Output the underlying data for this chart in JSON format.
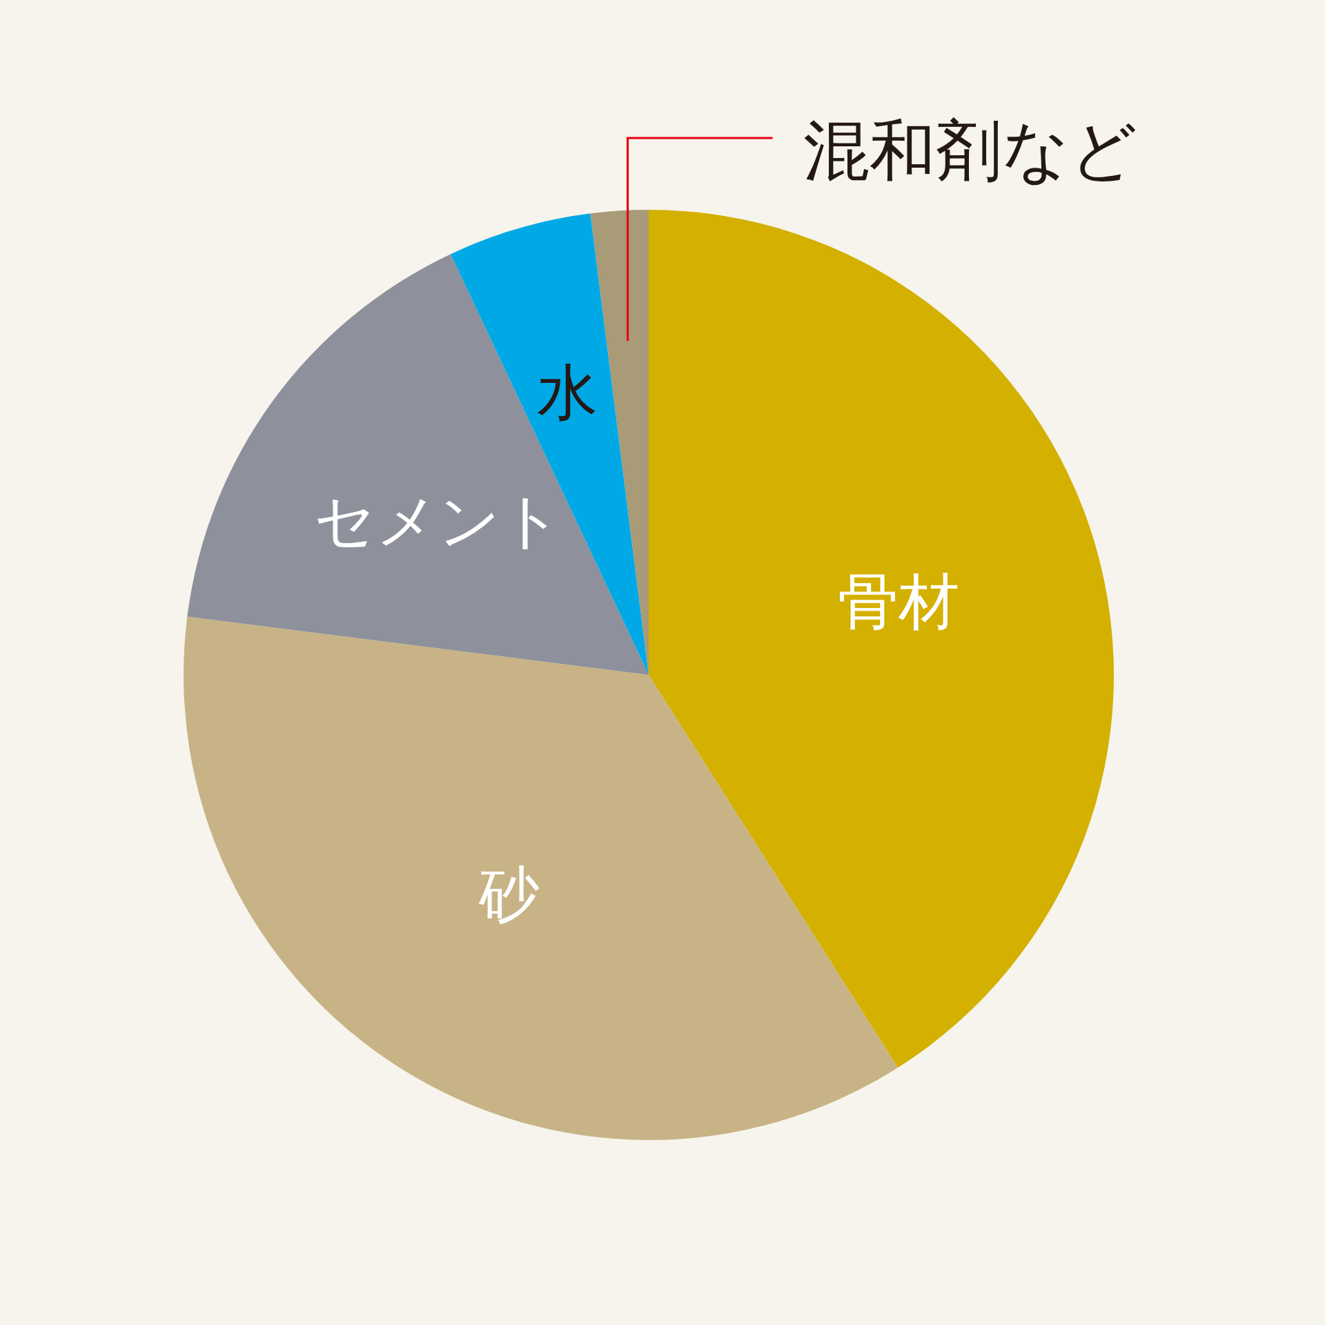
{
  "chart_data": {
    "type": "pie",
    "categories": [
      "骨材",
      "砂",
      "セメント",
      "水",
      "混和剤など"
    ],
    "values": [
      41,
      36,
      16,
      5,
      2
    ],
    "colors": [
      "#d4b000",
      "#c8b386",
      "#8e909c",
      "#00a9e6",
      "#a99a78"
    ]
  }
}
